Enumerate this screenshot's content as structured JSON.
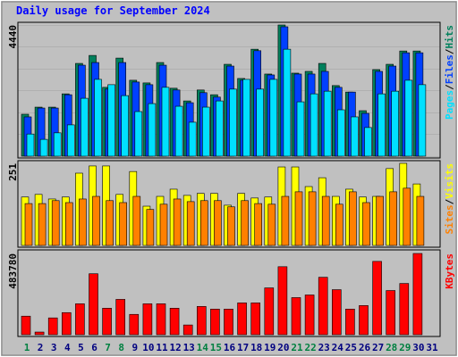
{
  "chart_data": [
    {
      "type": "bar",
      "title": "Daily usage for September 2024",
      "legend_separator": "/",
      "ylim": [
        0,
        4440
      ],
      "yticks": [
        4440
      ],
      "series": [
        {
          "name": "Hits",
          "color": "#00805c",
          "values": [
            1420,
            1660,
            1660,
            2110,
            3140,
            3410,
            2330,
            3320,
            2570,
            2480,
            3170,
            2300,
            1870,
            2240,
            2080,
            3110,
            2630,
            3620,
            2780,
            4440,
            2810,
            2870,
            3140,
            2390,
            2170,
            1540,
            2930,
            3110,
            3560,
            3560,
            null
          ]
        },
        {
          "name": "Files",
          "color": "#0040ff",
          "values": [
            1330,
            1630,
            1630,
            2080,
            3080,
            3170,
            2270,
            3170,
            2510,
            2420,
            3080,
            2240,
            1810,
            2150,
            2000,
            3050,
            2570,
            3570,
            2750,
            4380,
            2780,
            2780,
            2870,
            2330,
            2170,
            1450,
            2870,
            3050,
            3500,
            3500,
            null
          ]
        },
        {
          "name": "Pages",
          "color": "#00e0ff",
          "values": [
            750,
            570,
            790,
            1060,
            1960,
            2600,
            2420,
            2050,
            1510,
            1780,
            2330,
            1690,
            1150,
            1660,
            1870,
            2270,
            2600,
            2270,
            2600,
            3620,
            1840,
            2110,
            2200,
            1570,
            1330,
            970,
            2110,
            2200,
            2570,
            2420,
            null
          ]
        }
      ]
    },
    {
      "type": "bar",
      "ylim": [
        0,
        251
      ],
      "yticks": [
        251
      ],
      "series": [
        {
          "name": "Visits",
          "color": "#ffff00",
          "values": [
            148,
            156,
            142,
            148,
            221,
            243,
            243,
            156,
            226,
            120,
            150,
            172,
            153,
            159,
            159,
            123,
            159,
            145,
            148,
            240,
            240,
            180,
            207,
            150,
            172,
            148,
            150,
            235,
            251,
            188,
            null
          ]
        },
        {
          "name": "Sites",
          "color": "#ff8000",
          "values": [
            128,
            128,
            137,
            131,
            142,
            150,
            137,
            131,
            150,
            110,
            126,
            142,
            134,
            137,
            137,
            118,
            137,
            128,
            126,
            150,
            164,
            164,
            150,
            126,
            164,
            131,
            150,
            164,
            175,
            150,
            null
          ]
        }
      ]
    },
    {
      "type": "bar",
      "ylim": [
        0,
        483780
      ],
      "yticks": [
        483780
      ],
      "categories": [
        "1",
        "2",
        "3",
        "4",
        "5",
        "6",
        "7",
        "8",
        "9",
        "10",
        "11",
        "12",
        "13",
        "14",
        "15",
        "16",
        "17",
        "18",
        "19",
        "20",
        "21",
        "22",
        "23",
        "24",
        "25",
        "26",
        "27",
        "28",
        "29",
        "30",
        "31"
      ],
      "category_colors": [
        "#008040",
        "#000080",
        "#000080",
        "#000080",
        "#000080",
        "#000080",
        "#008040",
        "#008040",
        "#000080",
        "#000080",
        "#000080",
        "#000080",
        "#000080",
        "#008040",
        "#008040",
        "#000080",
        "#000080",
        "#000080",
        "#000080",
        "#000080",
        "#008040",
        "#008040",
        "#000080",
        "#000080",
        "#000080",
        "#000080",
        "#000080",
        "#008040",
        "#008040",
        "#000080",
        "#000080"
      ],
      "series": [
        {
          "name": "KBytes",
          "color": "#ff0000",
          "values": [
            110460,
            15780,
            100000,
            131500,
            184100,
            363000,
            157800,
            210400,
            121000,
            184100,
            184100,
            157800,
            57900,
            168300,
            152500,
            152500,
            189400,
            189400,
            278800,
            405000,
            220900,
            236700,
            342000,
            268200,
            152500,
            173600,
            436600,
            263000,
            305100,
            483780,
            null
          ]
        }
      ]
    }
  ]
}
